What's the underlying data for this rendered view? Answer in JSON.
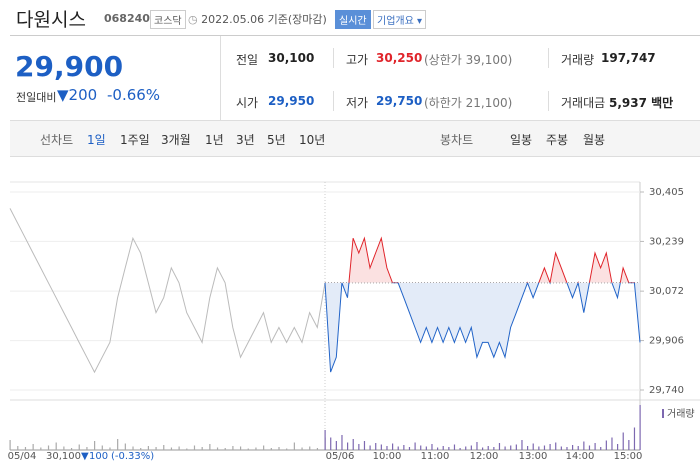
{
  "header": {
    "name": "다원시스",
    "code": "068240",
    "market": "코스닥",
    "date": "2022.05.06 기준(장마감)",
    "realtime": "실시간",
    "company": "기업개요"
  },
  "price": {
    "current": "29,900",
    "change_label": "전일대비",
    "change": "200",
    "change_pct": "-0.66%"
  },
  "stats": [
    {
      "label": "전일",
      "value": "30,100"
    },
    {
      "label": "고가",
      "value": "30,250",
      "extra": "(상한가 39,100)"
    },
    {
      "label": "거래량",
      "value": "197,747"
    },
    {
      "label": "시가",
      "value": "29,950"
    },
    {
      "label": "저가",
      "value": "29,750",
      "extra": "(하한가 21,100)"
    },
    {
      "label": "거래대금",
      "value": "5,937 백만"
    }
  ],
  "tabs": {
    "line_label": "선차트",
    "line": [
      "1일",
      "1주일",
      "3개월",
      "1년",
      "3년",
      "5년",
      "10년"
    ],
    "candle_label": "봉차트",
    "candle": [
      "일봉",
      "주봉",
      "월봉"
    ]
  },
  "chart_data": {
    "type": "line",
    "ylim": [
      29740,
      30405
    ],
    "yticks": [
      {
        "value": 30405,
        "label": "30,405"
      },
      {
        "value": 30239,
        "label": "30,239"
      },
      {
        "value": 30072,
        "label": "30,072"
      },
      {
        "value": 29906,
        "label": "29,906"
      },
      {
        "value": 29740,
        "label": "29,740"
      }
    ],
    "grid": true,
    "baseline": 30100,
    "xlabels": [
      "05/04",
      "05/06",
      "10:00",
      "11:00",
      "12:00",
      "13:00",
      "14:00",
      "15:00"
    ],
    "legend": {
      "close": "30,100",
      "change": "100",
      "change_pct": "(-0.33%)"
    },
    "volume_label": "거래량",
    "volume_color": "#7d68b0",
    "series": [
      {
        "color": "#bbbbbb",
        "values": [
          30350,
          30300,
          30250,
          30200,
          30150,
          30100,
          30050,
          30000,
          29950,
          29900,
          29850,
          29800,
          29850,
          29900,
          30050,
          30150,
          30250,
          30200,
          30100,
          30000,
          30050,
          30150,
          30100,
          30000,
          29950,
          29900,
          30050,
          30150,
          30100,
          29950,
          29850,
          29900,
          29950,
          30000,
          29900,
          29950,
          29900,
          29950,
          29900,
          30000,
          29950,
          30100
        ],
        "volume": [
          2000,
          800,
          600,
          1200,
          500,
          900,
          1500,
          700,
          400,
          1100,
          600,
          1800,
          900,
          500,
          2200,
          1300,
          700,
          400,
          800,
          600,
          1000,
          500,
          700,
          300,
          900,
          600,
          1200,
          500,
          400,
          800,
          700,
          300,
          500,
          900,
          400,
          600,
          300,
          1500,
          500,
          700,
          400,
          2500
        ]
      },
      {
        "color_up": "#e0242a",
        "color_down": "#2264c8",
        "fill_up": "#fbe1e1",
        "fill_down": "#e3ebf8",
        "values": [
          30100,
          29800,
          29850,
          30100,
          30050,
          30250,
          30200,
          30250,
          30150,
          30200,
          30250,
          30150,
          30100,
          30100,
          30050,
          30000,
          29950,
          29900,
          29950,
          29900,
          29950,
          29900,
          29950,
          29900,
          29950,
          29900,
          29950,
          29850,
          29900,
          29900,
          29850,
          29900,
          29850,
          29950,
          30000,
          30050,
          30100,
          30050,
          30100,
          30150,
          30100,
          30200,
          30150,
          30100,
          30050,
          30100,
          30000,
          30100,
          30200,
          30150,
          30200,
          30100,
          30050,
          30150,
          30100,
          30100,
          29900
        ],
        "volume": [
          4000,
          2500,
          1800,
          3000,
          1500,
          2200,
          1200,
          1800,
          900,
          1400,
          1100,
          800,
          1300,
          700,
          1000,
          600,
          1500,
          900,
          700,
          1200,
          500,
          800,
          600,
          1100,
          400,
          700,
          900,
          1600,
          500,
          800,
          600,
          1400,
          700,
          900,
          1100,
          2000,
          800,
          1300,
          700,
          900,
          1200,
          1500,
          700,
          600,
          1000,
          800,
          1700,
          900,
          1400,
          600,
          1900,
          2500,
          1200,
          3500,
          2000,
          4500,
          9000
        ]
      }
    ]
  }
}
